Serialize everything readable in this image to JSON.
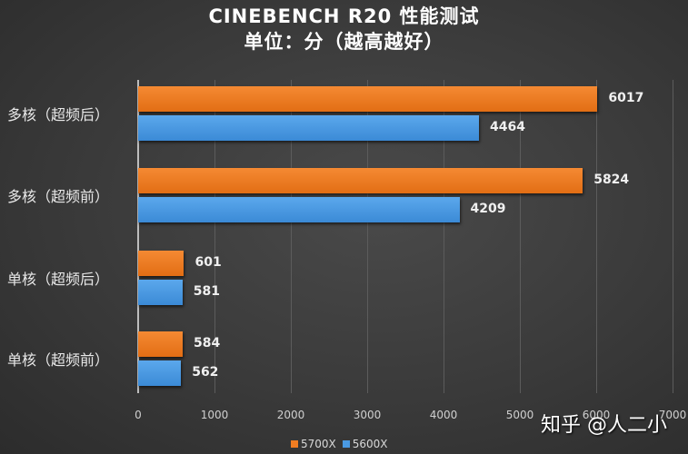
{
  "title": "CINEBENCH R20 性能测试",
  "subtitle": "单位：分（越高越好）",
  "watermark": "知乎 @人二小",
  "chart_data": {
    "type": "bar",
    "orientation": "horizontal",
    "title": "CINEBENCH R20 性能测试 单位：分（越高越好）",
    "categories": [
      "多核（超频后）",
      "多核（超频前）",
      "单核（超频后）",
      "单核（超频前）"
    ],
    "series": [
      {
        "name": "5700X",
        "color": "#f07d22",
        "values": [
          6017,
          5824,
          601,
          584
        ]
      },
      {
        "name": "5600X",
        "color": "#4a9ae3",
        "values": [
          4464,
          4209,
          581,
          562
        ]
      }
    ],
    "xlim": [
      0,
      7000
    ],
    "xticks": [
      "0",
      "1000",
      "2000",
      "3000",
      "4000",
      "5000",
      "6000",
      "7000"
    ],
    "grid": true,
    "legend_position": "bottom"
  },
  "legend": [
    {
      "label": "5700X",
      "color": "#f07d22"
    },
    {
      "label": "5600X",
      "color": "#4a9ae3"
    }
  ]
}
